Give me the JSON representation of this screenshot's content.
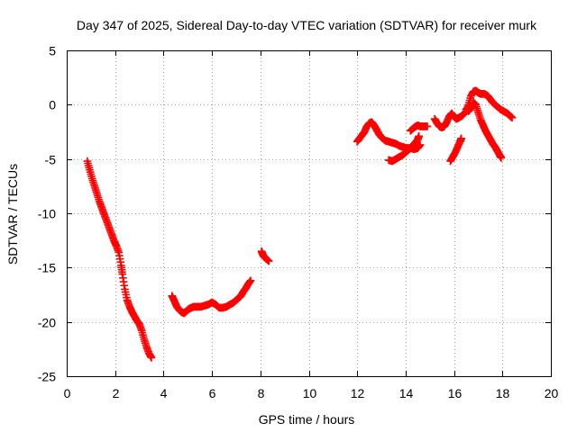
{
  "chart_data": {
    "type": "scatter",
    "title": "Day 347 of 2025, Sidereal Day-to-day VTEC variation (SDTVAR) for receiver murk",
    "xlabel": "GPS time / hours",
    "ylabel": "SDTVAR / TECUs",
    "xlim": [
      0,
      20
    ],
    "ylim": [
      -25,
      5
    ],
    "xticks": [
      0,
      2,
      4,
      6,
      8,
      10,
      12,
      14,
      16,
      18,
      20
    ],
    "yticks": [
      -25,
      -20,
      -15,
      -10,
      -5,
      0,
      5
    ],
    "grid": true,
    "legend": "none",
    "marker": "plus",
    "color": "#ff0000",
    "series": [
      {
        "points": [
          [
            0.85,
            -5.2
          ],
          [
            0.95,
            -6.0
          ],
          [
            1.05,
            -6.8
          ],
          [
            1.15,
            -7.5
          ],
          [
            1.25,
            -8.2
          ],
          [
            1.35,
            -8.9
          ],
          [
            1.45,
            -9.5
          ],
          [
            1.55,
            -10.1
          ],
          [
            1.65,
            -10.7
          ],
          [
            1.75,
            -11.3
          ],
          [
            1.85,
            -11.9
          ],
          [
            1.95,
            -12.5
          ],
          [
            2.05,
            -13.0
          ],
          [
            2.15,
            -13.6
          ],
          [
            2.25,
            -14.8
          ],
          [
            2.3,
            -15.6
          ],
          [
            2.4,
            -17.0
          ],
          [
            2.5,
            -18.0
          ],
          [
            2.6,
            -18.6
          ],
          [
            2.7,
            -19.1
          ],
          [
            2.8,
            -19.5
          ],
          [
            2.9,
            -19.9
          ],
          [
            3.0,
            -20.2
          ],
          [
            3.1,
            -20.8
          ],
          [
            3.2,
            -21.6
          ],
          [
            3.3,
            -22.3
          ],
          [
            3.4,
            -22.9
          ],
          [
            3.5,
            -23.3
          ]
        ]
      },
      {
        "points": [
          [
            4.35,
            -17.6
          ],
          [
            4.45,
            -18.1
          ],
          [
            4.55,
            -18.6
          ],
          [
            4.65,
            -18.9
          ],
          [
            4.75,
            -19.1
          ],
          [
            4.85,
            -19.2
          ],
          [
            4.95,
            -19.0
          ],
          [
            5.05,
            -18.8
          ],
          [
            5.15,
            -18.7
          ],
          [
            5.25,
            -18.6
          ],
          [
            5.4,
            -18.6
          ],
          [
            5.55,
            -18.6
          ],
          [
            5.7,
            -18.5
          ],
          [
            5.85,
            -18.4
          ],
          [
            6.0,
            -18.2
          ],
          [
            6.15,
            -18.4
          ],
          [
            6.3,
            -18.7
          ],
          [
            6.45,
            -18.7
          ],
          [
            6.6,
            -18.6
          ],
          [
            6.75,
            -18.4
          ],
          [
            6.9,
            -18.2
          ],
          [
            7.0,
            -18.0
          ],
          [
            7.1,
            -17.8
          ],
          [
            7.2,
            -17.6
          ],
          [
            7.3,
            -17.2
          ],
          [
            7.4,
            -16.9
          ],
          [
            7.5,
            -16.5
          ],
          [
            7.6,
            -16.2
          ]
        ]
      },
      {
        "points": [
          [
            8.05,
            -13.5
          ],
          [
            8.1,
            -13.8
          ],
          [
            8.15,
            -14.0
          ],
          [
            8.25,
            -14.2
          ],
          [
            8.35,
            -14.4
          ]
        ]
      },
      {
        "points": [
          [
            12.0,
            -3.4
          ],
          [
            12.1,
            -3.1
          ],
          [
            12.2,
            -2.8
          ],
          [
            12.3,
            -2.5
          ],
          [
            12.4,
            -2.0
          ],
          [
            12.5,
            -1.7
          ],
          [
            12.6,
            -1.6
          ],
          [
            12.7,
            -1.9
          ],
          [
            12.8,
            -2.3
          ],
          [
            12.9,
            -2.7
          ],
          [
            13.0,
            -3.0
          ],
          [
            13.15,
            -3.3
          ],
          [
            13.3,
            -3.4
          ],
          [
            13.45,
            -3.5
          ],
          [
            13.6,
            -3.6
          ],
          [
            13.75,
            -3.8
          ],
          [
            13.9,
            -3.9
          ],
          [
            14.05,
            -4.0
          ],
          [
            14.2,
            -4.0
          ],
          [
            14.35,
            -4.1
          ],
          [
            14.5,
            -4.0
          ],
          [
            14.6,
            -3.7
          ]
        ]
      },
      {
        "points": [
          [
            13.3,
            -5.1
          ],
          [
            13.45,
            -5.2
          ],
          [
            13.6,
            -5.0
          ],
          [
            13.75,
            -4.8
          ],
          [
            13.9,
            -4.6
          ],
          [
            14.05,
            -4.3
          ],
          [
            14.2,
            -4.0
          ],
          [
            14.35,
            -3.6
          ],
          [
            14.5,
            -3.2
          ],
          [
            14.55,
            -2.9
          ]
        ]
      },
      {
        "points": [
          [
            14.2,
            -2.4
          ],
          [
            14.35,
            -2.1
          ],
          [
            14.5,
            -1.9
          ],
          [
            14.6,
            -2.0
          ],
          [
            14.75,
            -2.0
          ],
          [
            14.9,
            -2.0
          ]
        ]
      },
      {
        "points": [
          [
            15.2,
            -1.3
          ],
          [
            15.3,
            -1.7
          ],
          [
            15.4,
            -2.0
          ],
          [
            15.5,
            -2.1
          ],
          [
            15.6,
            -2.0
          ],
          [
            15.7,
            -1.6
          ],
          [
            15.8,
            -1.1
          ],
          [
            15.9,
            -0.8
          ],
          [
            16.0,
            -1.1
          ],
          [
            16.1,
            -1.3
          ],
          [
            16.2,
            -1.2
          ],
          [
            16.35,
            -1.0
          ],
          [
            16.5,
            -0.6
          ],
          [
            16.6,
            0.0
          ],
          [
            16.7,
            0.8
          ],
          [
            16.8,
            1.2
          ],
          [
            16.9,
            1.3
          ],
          [
            17.0,
            1.1
          ],
          [
            17.1,
            1.0
          ],
          [
            17.25,
            1.0
          ],
          [
            17.4,
            0.8
          ],
          [
            17.5,
            0.5
          ],
          [
            17.6,
            0.2
          ],
          [
            17.75,
            -0.1
          ],
          [
            17.9,
            -0.4
          ],
          [
            18.05,
            -0.6
          ],
          [
            18.2,
            -0.8
          ],
          [
            18.3,
            -1.0
          ],
          [
            18.4,
            -1.2
          ]
        ]
      },
      {
        "points": [
          [
            15.85,
            -5.2
          ],
          [
            15.95,
            -4.8
          ],
          [
            16.05,
            -4.4
          ],
          [
            16.15,
            -3.9
          ],
          [
            16.25,
            -3.4
          ],
          [
            16.3,
            -3.1
          ]
        ]
      },
      {
        "points": [
          [
            16.5,
            -0.4
          ],
          [
            16.6,
            -0.6
          ],
          [
            16.7,
            -0.3
          ],
          [
            16.8,
            0.2
          ],
          [
            16.9,
            0.0
          ],
          [
            17.0,
            -0.7
          ],
          [
            17.1,
            -1.4
          ],
          [
            17.2,
            -1.9
          ],
          [
            17.3,
            -2.4
          ],
          [
            17.4,
            -2.8
          ],
          [
            17.5,
            -3.2
          ],
          [
            17.6,
            -3.6
          ],
          [
            17.7,
            -3.9
          ],
          [
            17.8,
            -4.3
          ],
          [
            17.9,
            -4.7
          ],
          [
            17.95,
            -4.9
          ]
        ]
      }
    ]
  }
}
